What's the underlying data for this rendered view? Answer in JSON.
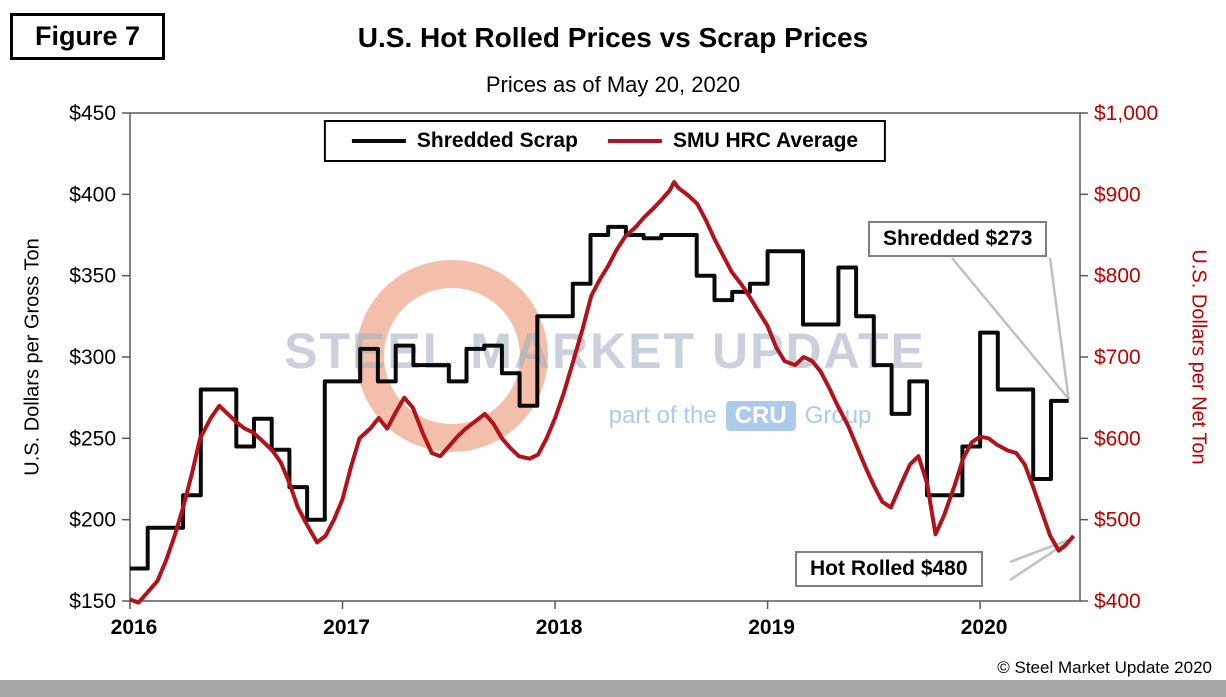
{
  "figure_label": "Figure 7",
  "chart_data": {
    "type": "line",
    "title": "U.S. Hot Rolled Prices vs Scrap Prices",
    "subtitle": "Prices as of May 20, 2020",
    "legend_position": "top-center",
    "grid": false,
    "x_axis": {
      "range": [
        2016.0,
        2020.47
      ],
      "ticks": [
        2016,
        2017,
        2018,
        2019,
        2020
      ],
      "tick_labels": [
        "2016",
        "2017",
        "2018",
        "2019",
        "2020"
      ]
    },
    "left_axis": {
      "label": "U.S. Dollars per Gross Ton",
      "range": [
        150,
        450
      ],
      "tick_step": 50,
      "tick_labels": [
        "$150",
        "$200",
        "$250",
        "$300",
        "$350",
        "$400",
        "$450"
      ],
      "color": "#000000"
    },
    "right_axis": {
      "label": "U.S. Dollars per Net Ton",
      "range": [
        400,
        1000
      ],
      "tick_step": 100,
      "tick_labels": [
        "$400",
        "$500",
        "$600",
        "$700",
        "$800",
        "$900",
        "$1,000"
      ],
      "color": "#C00000"
    },
    "series": [
      {
        "name": "Shredded Scrap",
        "axis": "left",
        "units": "USD per gross ton",
        "color": "#0a0a0a",
        "style": "step-monthly",
        "x_start": 2016.0,
        "values": [
          170,
          195,
          195,
          215,
          280,
          280,
          245,
          262,
          243,
          220,
          200,
          285,
          285,
          305,
          285,
          307,
          295,
          295,
          285,
          305,
          307,
          290,
          270,
          325,
          325,
          345,
          375,
          380,
          375,
          373,
          375,
          375,
          350,
          335,
          340,
          345,
          365,
          365,
          320,
          320,
          355,
          325,
          295,
          265,
          285,
          215,
          215,
          245,
          315,
          280,
          280,
          225,
          273
        ]
      },
      {
        "name": "SMU HRC Average",
        "axis": "right",
        "units": "USD per net ton",
        "color": "#B3121A",
        "style": "line",
        "points": [
          [
            2016.0,
            402
          ],
          [
            2016.04,
            398
          ],
          [
            2016.08,
            410
          ],
          [
            2016.13,
            425
          ],
          [
            2016.17,
            450
          ],
          [
            2016.21,
            480
          ],
          [
            2016.25,
            515
          ],
          [
            2016.29,
            555
          ],
          [
            2016.33,
            600
          ],
          [
            2016.38,
            625
          ],
          [
            2016.42,
            640
          ],
          [
            2016.46,
            630
          ],
          [
            2016.5,
            620
          ],
          [
            2016.54,
            612
          ],
          [
            2016.58,
            607
          ],
          [
            2016.63,
            595
          ],
          [
            2016.67,
            585
          ],
          [
            2016.71,
            570
          ],
          [
            2016.75,
            545
          ],
          [
            2016.79,
            515
          ],
          [
            2016.83,
            495
          ],
          [
            2016.88,
            472
          ],
          [
            2016.92,
            480
          ],
          [
            2016.96,
            500
          ],
          [
            2017.0,
            525
          ],
          [
            2017.04,
            565
          ],
          [
            2017.08,
            600
          ],
          [
            2017.13,
            612
          ],
          [
            2017.17,
            625
          ],
          [
            2017.21,
            612
          ],
          [
            2017.25,
            632
          ],
          [
            2017.29,
            650
          ],
          [
            2017.33,
            638
          ],
          [
            2017.38,
            605
          ],
          [
            2017.42,
            582
          ],
          [
            2017.46,
            578
          ],
          [
            2017.5,
            590
          ],
          [
            2017.54,
            602
          ],
          [
            2017.58,
            612
          ],
          [
            2017.63,
            622
          ],
          [
            2017.67,
            630
          ],
          [
            2017.71,
            618
          ],
          [
            2017.75,
            600
          ],
          [
            2017.79,
            588
          ],
          [
            2017.83,
            578
          ],
          [
            2017.88,
            575
          ],
          [
            2017.92,
            580
          ],
          [
            2017.96,
            600
          ],
          [
            2018.0,
            625
          ],
          [
            2018.04,
            655
          ],
          [
            2018.08,
            690
          ],
          [
            2018.13,
            735
          ],
          [
            2018.17,
            775
          ],
          [
            2018.21,
            795
          ],
          [
            2018.25,
            812
          ],
          [
            2018.29,
            832
          ],
          [
            2018.33,
            848
          ],
          [
            2018.38,
            860
          ],
          [
            2018.42,
            872
          ],
          [
            2018.46,
            882
          ],
          [
            2018.5,
            893
          ],
          [
            2018.54,
            905
          ],
          [
            2018.56,
            915
          ],
          [
            2018.58,
            908
          ],
          [
            2018.63,
            898
          ],
          [
            2018.67,
            888
          ],
          [
            2018.71,
            868
          ],
          [
            2018.75,
            845
          ],
          [
            2018.79,
            825
          ],
          [
            2018.83,
            805
          ],
          [
            2018.88,
            788
          ],
          [
            2018.92,
            772
          ],
          [
            2018.96,
            755
          ],
          [
            2019.0,
            738
          ],
          [
            2019.04,
            712
          ],
          [
            2019.08,
            695
          ],
          [
            2019.13,
            690
          ],
          [
            2019.17,
            700
          ],
          [
            2019.21,
            695
          ],
          [
            2019.25,
            682
          ],
          [
            2019.29,
            662
          ],
          [
            2019.33,
            640
          ],
          [
            2019.38,
            615
          ],
          [
            2019.42,
            590
          ],
          [
            2019.46,
            565
          ],
          [
            2019.5,
            542
          ],
          [
            2019.54,
            522
          ],
          [
            2019.58,
            515
          ],
          [
            2019.63,
            545
          ],
          [
            2019.67,
            568
          ],
          [
            2019.71,
            578
          ],
          [
            2019.75,
            545
          ],
          [
            2019.79,
            482
          ],
          [
            2019.83,
            505
          ],
          [
            2019.88,
            542
          ],
          [
            2019.92,
            575
          ],
          [
            2019.96,
            595
          ],
          [
            2020.0,
            602
          ],
          [
            2020.04,
            600
          ],
          [
            2020.08,
            592
          ],
          [
            2020.13,
            585
          ],
          [
            2020.17,
            582
          ],
          [
            2020.21,
            568
          ],
          [
            2020.25,
            540
          ],
          [
            2020.29,
            510
          ],
          [
            2020.33,
            480
          ],
          [
            2020.37,
            462
          ],
          [
            2020.4,
            468
          ],
          [
            2020.44,
            480
          ]
        ]
      }
    ],
    "annotations": [
      {
        "label": "Shredded $273",
        "value": 273,
        "series": "Shredded Scrap"
      },
      {
        "label": "Hot Rolled $480",
        "value": 480,
        "series": "SMU HRC Average"
      }
    ]
  },
  "watermark": {
    "main": "STEEL MARKET UPDATE",
    "sub_prefix": "part of the",
    "sub_box": "CRU",
    "sub_suffix": "Group"
  },
  "footer": {
    "copyright": "© Steel Market Update 2020"
  }
}
